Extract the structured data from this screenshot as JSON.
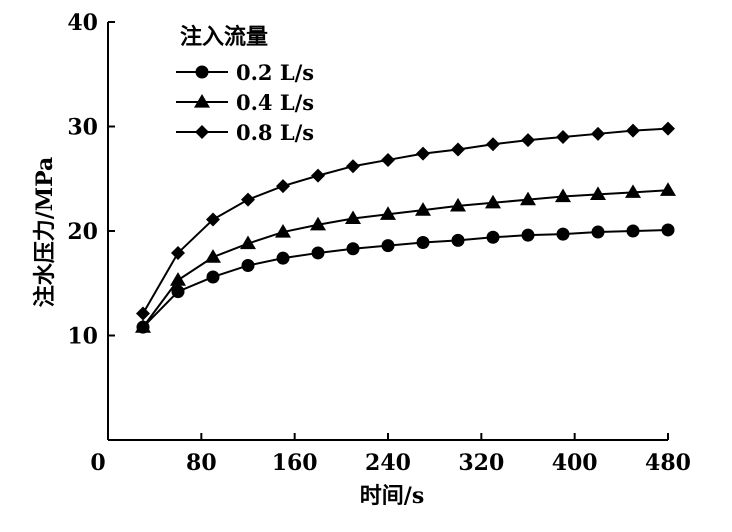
{
  "chart_data": {
    "type": "line",
    "xlabel": "时间/s",
    "ylabel": "注水压力/MPa",
    "xlim": [
      0,
      480
    ],
    "ylim": [
      0,
      40
    ],
    "xticks": [
      0,
      80,
      160,
      240,
      320,
      400,
      480
    ],
    "yticks": [
      10,
      20,
      30,
      40
    ],
    "xtick_labels": [
      "0",
      "80",
      "160",
      "240",
      "320",
      "400",
      "480"
    ],
    "ytick_labels": [
      "10",
      "20",
      "30",
      "40"
    ],
    "grid": false,
    "legend": {
      "title": "注入流量",
      "placement": "top-left"
    },
    "x": [
      30,
      60,
      90,
      120,
      150,
      180,
      210,
      240,
      270,
      300,
      330,
      360,
      390,
      420,
      450,
      480
    ],
    "series": [
      {
        "name": "0.2 L/s",
        "marker": "circle",
        "values": [
          10.8,
          14.2,
          15.6,
          16.7,
          17.4,
          17.9,
          18.3,
          18.6,
          18.9,
          19.1,
          19.4,
          19.6,
          19.7,
          19.9,
          20.0,
          20.1
        ]
      },
      {
        "name": "0.4 L/s",
        "marker": "triangle",
        "values": [
          10.8,
          15.3,
          17.5,
          18.8,
          19.9,
          20.6,
          21.2,
          21.6,
          22.0,
          22.4,
          22.7,
          23.0,
          23.3,
          23.5,
          23.7,
          23.9
        ]
      },
      {
        "name": "0.8 L/s",
        "marker": "diamond",
        "values": [
          12.1,
          17.9,
          21.1,
          23.0,
          24.3,
          25.3,
          26.2,
          26.8,
          27.4,
          27.8,
          28.3,
          28.7,
          29.0,
          29.3,
          29.6,
          29.8
        ]
      }
    ]
  }
}
